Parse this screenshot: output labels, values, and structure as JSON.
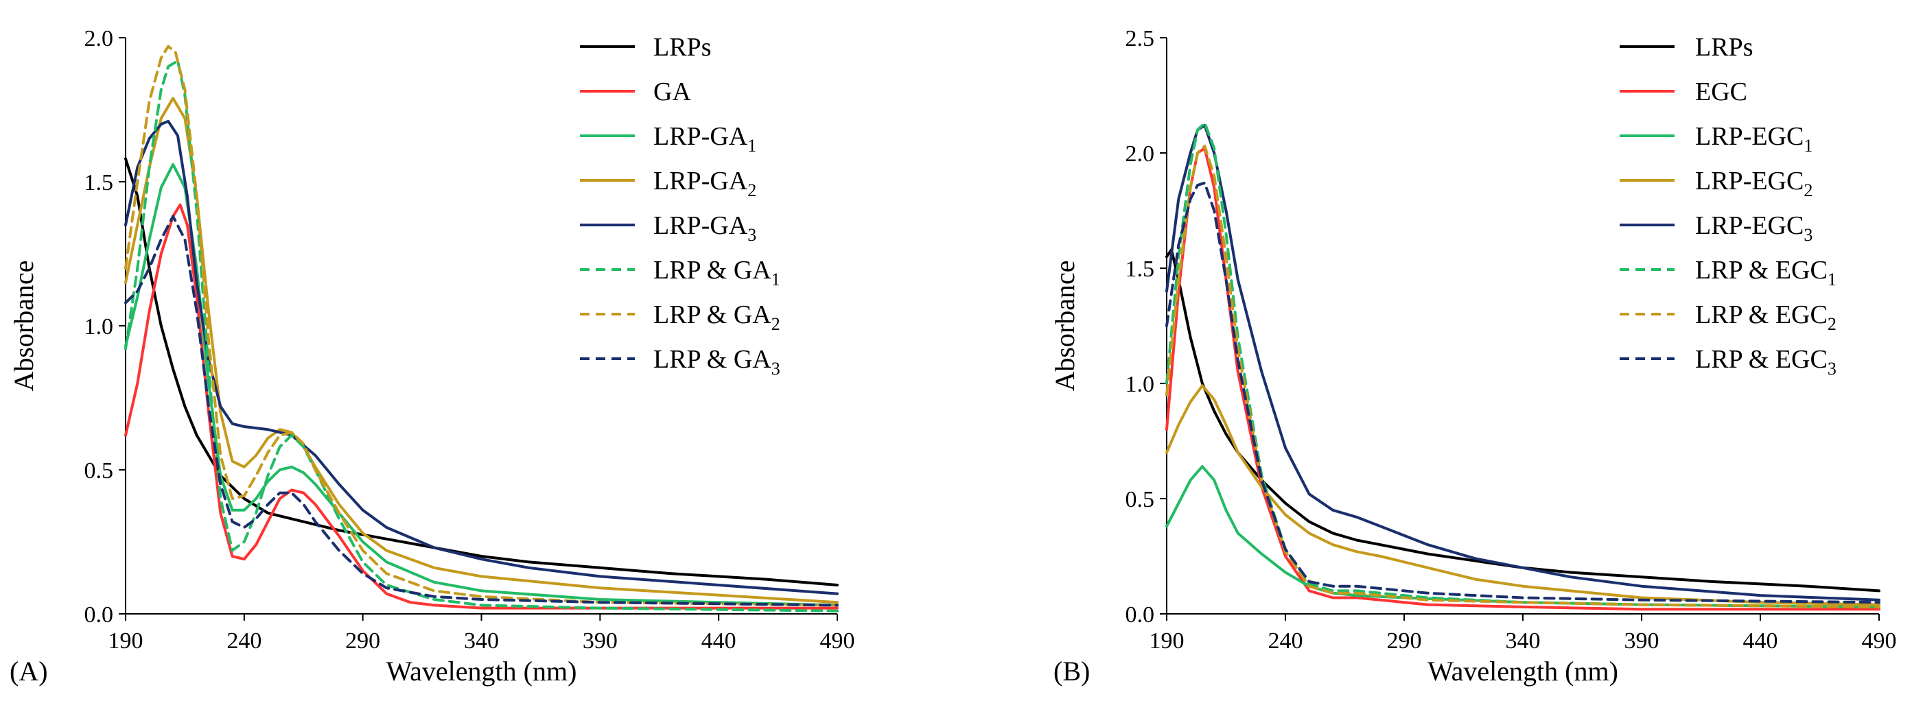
{
  "chart_data": [
    {
      "panel": "(A)",
      "type": "line",
      "xlabel": "Wavelength (nm)",
      "ylabel": "Absorbance",
      "xlim": [
        190,
        490
      ],
      "ylim": [
        0,
        2.0
      ],
      "xticks": [
        190,
        240,
        290,
        340,
        390,
        440,
        490
      ],
      "xtick_labels": [
        "190",
        "240",
        "290",
        "340",
        "390",
        "440",
        "490"
      ],
      "yticks": [
        0,
        0.5,
        1.0,
        1.5,
        2.0
      ],
      "ytick_labels": [
        "0.0",
        "0.5",
        "1.0",
        "1.5",
        "2.0"
      ],
      "legend": "top-right",
      "series": [
        {
          "name": "LRPs",
          "label": "LRPs",
          "sub": "",
          "color": "#000000",
          "dash": "solid",
          "x": [
            190,
            195,
            200,
            205,
            210,
            215,
            220,
            230,
            240,
            250,
            260,
            270,
            280,
            300,
            320,
            340,
            360,
            390,
            420,
            460,
            490
          ],
          "y": [
            1.58,
            1.45,
            1.2,
            1.0,
            0.85,
            0.72,
            0.62,
            0.48,
            0.4,
            0.35,
            0.33,
            0.31,
            0.29,
            0.26,
            0.23,
            0.2,
            0.18,
            0.16,
            0.14,
            0.12,
            0.1
          ]
        },
        {
          "name": "GA",
          "label": "GA",
          "sub": "",
          "color": "#ff3333",
          "dash": "solid",
          "x": [
            190,
            195,
            200,
            205,
            210,
            213,
            216,
            220,
            225,
            230,
            235,
            240,
            245,
            250,
            255,
            260,
            265,
            270,
            280,
            290,
            300,
            310,
            320,
            340,
            390,
            490
          ],
          "y": [
            0.62,
            0.8,
            1.05,
            1.25,
            1.38,
            1.42,
            1.35,
            1.1,
            0.7,
            0.35,
            0.2,
            0.19,
            0.24,
            0.32,
            0.4,
            0.43,
            0.42,
            0.38,
            0.27,
            0.15,
            0.07,
            0.04,
            0.03,
            0.02,
            0.02,
            0.02
          ]
        },
        {
          "name": "LRP-GA1",
          "label": "LRP-GA",
          "sub": "1",
          "color": "#22bb66",
          "dash": "solid",
          "x": [
            190,
            195,
            200,
            205,
            210,
            215,
            220,
            225,
            230,
            235,
            240,
            245,
            250,
            255,
            260,
            265,
            270,
            280,
            290,
            300,
            320,
            340,
            390,
            490
          ],
          "y": [
            0.93,
            1.1,
            1.3,
            1.48,
            1.56,
            1.48,
            1.2,
            0.8,
            0.48,
            0.36,
            0.36,
            0.4,
            0.46,
            0.5,
            0.51,
            0.49,
            0.45,
            0.35,
            0.25,
            0.18,
            0.11,
            0.08,
            0.05,
            0.03
          ]
        },
        {
          "name": "LRP-GA2",
          "label": "LRP-GA",
          "sub": "2",
          "color": "#c59a1c",
          "dash": "solid",
          "x": [
            190,
            195,
            200,
            205,
            210,
            215,
            220,
            225,
            230,
            235,
            240,
            245,
            250,
            255,
            260,
            265,
            270,
            280,
            290,
            300,
            320,
            340,
            390,
            490
          ],
          "y": [
            1.15,
            1.35,
            1.55,
            1.72,
            1.79,
            1.72,
            1.45,
            1.05,
            0.7,
            0.53,
            0.51,
            0.55,
            0.61,
            0.64,
            0.63,
            0.58,
            0.51,
            0.38,
            0.28,
            0.22,
            0.16,
            0.13,
            0.09,
            0.04
          ]
        },
        {
          "name": "LRP-GA3",
          "label": "LRP-GA",
          "sub": "3",
          "color": "#1a2f6e",
          "dash": "solid",
          "x": [
            190,
            195,
            200,
            205,
            208,
            212,
            216,
            220,
            225,
            230,
            235,
            240,
            250,
            260,
            270,
            280,
            290,
            300,
            320,
            340,
            360,
            390,
            440,
            490
          ],
          "y": [
            1.35,
            1.55,
            1.65,
            1.7,
            1.71,
            1.66,
            1.45,
            1.15,
            0.88,
            0.72,
            0.66,
            0.65,
            0.64,
            0.62,
            0.55,
            0.45,
            0.36,
            0.3,
            0.23,
            0.19,
            0.16,
            0.13,
            0.1,
            0.07
          ]
        },
        {
          "name": "LRP & GA1",
          "label": "LRP & GA",
          "sub": "1",
          "color": "#22bb66",
          "dash": "dashed",
          "x": [
            190,
            195,
            200,
            205,
            208,
            212,
            215,
            220,
            225,
            230,
            235,
            240,
            245,
            250,
            255,
            260,
            265,
            270,
            280,
            290,
            300,
            320,
            340,
            390,
            490
          ],
          "y": [
            0.92,
            1.2,
            1.55,
            1.82,
            1.9,
            1.92,
            1.8,
            1.4,
            0.85,
            0.4,
            0.22,
            0.25,
            0.35,
            0.48,
            0.58,
            0.62,
            0.58,
            0.5,
            0.33,
            0.18,
            0.1,
            0.05,
            0.03,
            0.02,
            0.01
          ]
        },
        {
          "name": "LRP & GA2",
          "label": "LRP & GA",
          "sub": "2",
          "color": "#c59a1c",
          "dash": "dashed",
          "x": [
            190,
            195,
            200,
            205,
            208,
            211,
            215,
            220,
            225,
            230,
            235,
            240,
            245,
            250,
            255,
            260,
            265,
            270,
            280,
            290,
            300,
            320,
            340,
            390,
            490
          ],
          "y": [
            1.2,
            1.5,
            1.78,
            1.93,
            1.97,
            1.95,
            1.82,
            1.45,
            0.95,
            0.55,
            0.4,
            0.41,
            0.48,
            0.56,
            0.62,
            0.63,
            0.59,
            0.5,
            0.35,
            0.22,
            0.14,
            0.08,
            0.06,
            0.04,
            0.03
          ]
        },
        {
          "name": "LRP & GA3",
          "label": "LRP & GA",
          "sub": "3",
          "color": "#1a2f6e",
          "dash": "dashed",
          "x": [
            190,
            195,
            200,
            205,
            210,
            215,
            220,
            225,
            230,
            235,
            240,
            245,
            250,
            255,
            260,
            265,
            270,
            280,
            290,
            300,
            320,
            340,
            390,
            490
          ],
          "y": [
            1.08,
            1.12,
            1.2,
            1.3,
            1.38,
            1.3,
            1.05,
            0.72,
            0.45,
            0.32,
            0.3,
            0.33,
            0.38,
            0.42,
            0.42,
            0.38,
            0.32,
            0.22,
            0.14,
            0.09,
            0.06,
            0.05,
            0.04,
            0.03
          ]
        }
      ]
    },
    {
      "panel": "(B)",
      "type": "line",
      "xlabel": "Wavelength (nm)",
      "ylabel": "Absorbance",
      "xlim": [
        190,
        490
      ],
      "ylim": [
        0,
        2.5
      ],
      "xticks": [
        190,
        240,
        290,
        340,
        390,
        440,
        490
      ],
      "xtick_labels": [
        "190",
        "240",
        "290",
        "340",
        "390",
        "440",
        "490"
      ],
      "yticks": [
        0,
        0.5,
        1.0,
        1.5,
        2.0,
        2.5
      ],
      "ytick_labels": [
        "0.0",
        "0.5",
        "1.0",
        "1.5",
        "2.0",
        "2.5"
      ],
      "legend": "top-right",
      "series": [
        {
          "name": "LRPs",
          "label": "LRPs",
          "sub": "",
          "color": "#000000",
          "dash": "solid",
          "x": [
            190,
            192,
            195,
            200,
            205,
            210,
            215,
            220,
            230,
            240,
            250,
            260,
            270,
            280,
            300,
            320,
            340,
            360,
            390,
            420,
            460,
            490
          ],
          "y": [
            1.55,
            1.58,
            1.45,
            1.2,
            1.0,
            0.88,
            0.78,
            0.7,
            0.58,
            0.48,
            0.4,
            0.35,
            0.32,
            0.3,
            0.26,
            0.23,
            0.2,
            0.18,
            0.16,
            0.14,
            0.12,
            0.1
          ]
        },
        {
          "name": "EGC",
          "label": "EGC",
          "sub": "",
          "color": "#ff3333",
          "dash": "solid",
          "x": [
            190,
            195,
            200,
            203,
            206,
            210,
            215,
            220,
            230,
            240,
            250,
            260,
            270,
            280,
            290,
            300,
            340,
            390,
            490
          ],
          "y": [
            0.8,
            1.4,
            1.85,
            2.0,
            2.02,
            1.85,
            1.45,
            1.05,
            0.55,
            0.25,
            0.1,
            0.07,
            0.07,
            0.06,
            0.05,
            0.04,
            0.03,
            0.02,
            0.02
          ]
        },
        {
          "name": "LRP-EGC1",
          "label": "LRP-EGC",
          "sub": "1",
          "color": "#22bb66",
          "dash": "solid",
          "x": [
            190,
            195,
            200,
            205,
            210,
            215,
            220,
            230,
            240,
            250,
            260,
            270,
            290,
            340,
            390,
            490
          ],
          "y": [
            0.38,
            0.48,
            0.58,
            0.64,
            0.58,
            0.45,
            0.35,
            0.26,
            0.18,
            0.12,
            0.09,
            0.08,
            0.07,
            0.05,
            0.04,
            0.03
          ]
        },
        {
          "name": "LRP-EGC2",
          "label": "LRP-EGC",
          "sub": "2",
          "color": "#c59a1c",
          "dash": "solid",
          "x": [
            190,
            195,
            200,
            205,
            210,
            215,
            220,
            230,
            240,
            250,
            260,
            270,
            280,
            300,
            320,
            340,
            360,
            390,
            440,
            490
          ],
          "y": [
            0.7,
            0.82,
            0.92,
            0.99,
            0.93,
            0.82,
            0.7,
            0.55,
            0.43,
            0.35,
            0.3,
            0.27,
            0.25,
            0.2,
            0.15,
            0.12,
            0.1,
            0.07,
            0.05,
            0.04
          ]
        },
        {
          "name": "LRP-EGC3",
          "label": "LRP-EGC",
          "sub": "3",
          "color": "#1a2f6e",
          "dash": "solid",
          "x": [
            190,
            195,
            200,
            203,
            206,
            210,
            215,
            220,
            230,
            240,
            250,
            260,
            270,
            280,
            300,
            320,
            340,
            360,
            390,
            440,
            490
          ],
          "y": [
            1.4,
            1.8,
            2.0,
            2.1,
            2.12,
            2.0,
            1.75,
            1.45,
            1.05,
            0.72,
            0.52,
            0.45,
            0.42,
            0.38,
            0.3,
            0.24,
            0.2,
            0.16,
            0.12,
            0.08,
            0.06
          ]
        },
        {
          "name": "LRP & EGC1",
          "label": "LRP & EGC",
          "sub": "1",
          "color": "#22bb66",
          "dash": "dashed",
          "x": [
            190,
            195,
            200,
            203,
            206,
            210,
            215,
            220,
            230,
            240,
            250,
            260,
            270,
            280,
            290,
            300,
            340,
            390,
            490
          ],
          "y": [
            1.0,
            1.55,
            1.95,
            2.1,
            2.13,
            2.02,
            1.65,
            1.2,
            0.6,
            0.28,
            0.13,
            0.1,
            0.1,
            0.09,
            0.08,
            0.07,
            0.05,
            0.04,
            0.03
          ]
        },
        {
          "name": "LRP & EGC2",
          "label": "LRP & EGC",
          "sub": "2",
          "color": "#c59a1c",
          "dash": "dashed",
          "x": [
            190,
            195,
            200,
            203,
            206,
            210,
            215,
            220,
            230,
            240,
            250,
            260,
            270,
            280,
            290,
            300,
            340,
            390,
            490
          ],
          "y": [
            0.95,
            1.45,
            1.85,
            2.0,
            2.03,
            1.9,
            1.55,
            1.15,
            0.58,
            0.27,
            0.12,
            0.09,
            0.09,
            0.08,
            0.07,
            0.06,
            0.05,
            0.04,
            0.03
          ]
        },
        {
          "name": "LRP & EGC3",
          "label": "LRP & EGC",
          "sub": "3",
          "color": "#1a2f6e",
          "dash": "dashed",
          "x": [
            190,
            195,
            200,
            203,
            206,
            210,
            215,
            220,
            230,
            240,
            250,
            260,
            270,
            280,
            290,
            300,
            340,
            390,
            490
          ],
          "y": [
            1.25,
            1.6,
            1.8,
            1.86,
            1.87,
            1.75,
            1.45,
            1.1,
            0.58,
            0.28,
            0.14,
            0.12,
            0.12,
            0.11,
            0.1,
            0.09,
            0.07,
            0.06,
            0.05
          ]
        }
      ]
    }
  ]
}
